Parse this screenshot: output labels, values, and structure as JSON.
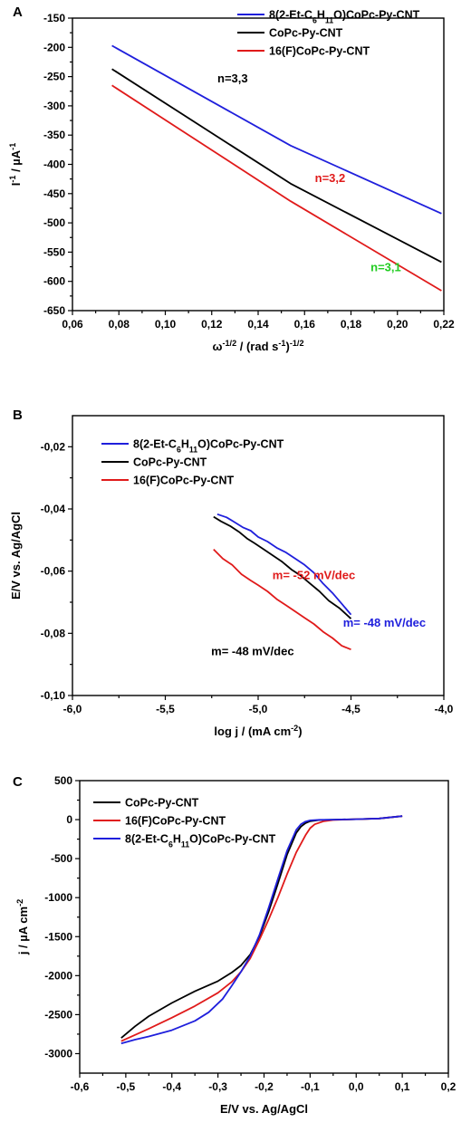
{
  "chart_data": [
    {
      "panel": "A",
      "type": "line",
      "xlabel": "ω^-1/2 / (rad s^-1)^-1/2",
      "ylabel": "I^-1 / µA^-1",
      "xlim": [
        0.06,
        0.22
      ],
      "ylim": [
        -650,
        -150
      ],
      "xticks": [
        "0,06",
        "0,08",
        "0,10",
        "0,12",
        "0,14",
        "0,16",
        "0,18",
        "0,20",
        "0,22"
      ],
      "yticks": [
        "-150",
        "-200",
        "-250",
        "-300",
        "-350",
        "-400",
        "-450",
        "-500",
        "-550",
        "-600",
        "-650"
      ],
      "legend_position": "top-right",
      "series": [
        {
          "name": "8(2-Et-C6H11O)CoPc-Py-CNT",
          "color": "#1f1fdc",
          "x": [
            0.077,
            0.154,
            0.219
          ],
          "y": [
            -197,
            -368,
            -484
          ]
        },
        {
          "name": "CoPc-Py-CNT",
          "color": "#000000",
          "x": [
            0.077,
            0.154,
            0.219
          ],
          "y": [
            -237,
            -433,
            -567
          ]
        },
        {
          "name": "16(F)CoPc-Py-CNT",
          "color": "#e01a1a",
          "x": [
            0.077,
            0.154,
            0.219
          ],
          "y": [
            -265,
            -463,
            -616
          ]
        }
      ],
      "annotations": [
        {
          "text": "n=3,3",
          "color": "#000000",
          "x": 0.129,
          "y": -260
        },
        {
          "text": "n=3,2",
          "color": "#e01a1a",
          "x": 0.171,
          "y": -430
        },
        {
          "text": "n=3,1",
          "color": "#22cc22",
          "x": 0.195,
          "y": -583
        }
      ]
    },
    {
      "panel": "B",
      "type": "line",
      "xlabel": "log j / (mA cm^-2)",
      "ylabel": "E/V vs. Ag/AgCl",
      "xlim": [
        -6.0,
        -4.0
      ],
      "ylim": [
        -0.1,
        -0.01
      ],
      "xticks": [
        "-6,0",
        "-5,5",
        "-5,0",
        "-4,5",
        "-4,0"
      ],
      "yticks": [
        "-0,02",
        "-0,04",
        "-0,06",
        "-0,08",
        "-0,10"
      ],
      "legend_position": "top-left",
      "series": [
        {
          "name": "8(2-Et-C6H11O)CoPc-Py-CNT",
          "color": "#1f1fdc",
          "x": [
            -5.22,
            -5.17,
            -5.12,
            -5.08,
            -5.04,
            -5.0,
            -4.95,
            -4.9,
            -4.85,
            -4.8,
            -4.75,
            -4.7,
            -4.65,
            -4.6,
            -4.55,
            -4.5
          ],
          "y": [
            -0.0417,
            -0.0427,
            -0.0445,
            -0.046,
            -0.047,
            -0.049,
            -0.0505,
            -0.0525,
            -0.054,
            -0.056,
            -0.058,
            -0.0605,
            -0.064,
            -0.067,
            -0.0705,
            -0.074
          ]
        },
        {
          "name": "CoPc-Py-CNT",
          "color": "#000000",
          "x": [
            -5.24,
            -5.2,
            -5.15,
            -5.1,
            -5.06,
            -5.02,
            -4.97,
            -4.92,
            -4.87,
            -4.82,
            -4.77,
            -4.72,
            -4.67,
            -4.62,
            -4.56,
            -4.5
          ],
          "y": [
            -0.0425,
            -0.044,
            -0.0455,
            -0.0475,
            -0.0495,
            -0.051,
            -0.053,
            -0.055,
            -0.057,
            -0.0595,
            -0.0615,
            -0.064,
            -0.0665,
            -0.0695,
            -0.072,
            -0.0753
          ]
        },
        {
          "name": "16(F)CoPc-Py-CNT",
          "color": "#e01a1a",
          "x": [
            -5.24,
            -5.19,
            -5.14,
            -5.09,
            -5.04,
            -5.0,
            -4.95,
            -4.9,
            -4.85,
            -4.8,
            -4.75,
            -4.7,
            -4.65,
            -4.6,
            -4.55,
            -4.5
          ],
          "y": [
            -0.053,
            -0.056,
            -0.058,
            -0.061,
            -0.063,
            -0.0645,
            -0.0665,
            -0.069,
            -0.071,
            -0.073,
            -0.075,
            -0.077,
            -0.0795,
            -0.0815,
            -0.084,
            -0.0852
          ]
        }
      ],
      "annotations": [
        {
          "text": "m= -52 mV/dec",
          "color": "#e01a1a",
          "x": -4.7,
          "y": -0.0625
        },
        {
          "text": "m= -48 mV/dec",
          "color": "#1f1fdc",
          "x": -4.32,
          "y": -0.0778
        },
        {
          "text": "m= -48 mV/dec",
          "color": "#000000",
          "x": -5.03,
          "y": -0.087
        }
      ]
    },
    {
      "panel": "C",
      "type": "line",
      "xlabel": "E/V vs. Ag/AgCl",
      "ylabel": "j / µA cm^-2",
      "xlim": [
        -0.6,
        0.2
      ],
      "ylim": [
        -3250,
        500
      ],
      "xticks": [
        "-0,6",
        "-0,5",
        "-0,4",
        "-0,3",
        "-0,2",
        "-0,1",
        "0,0",
        "0,1",
        "0,2"
      ],
      "yticks": [
        "500",
        "0",
        "-500",
        "-1000",
        "-1500",
        "-2000",
        "-2500",
        "-3000"
      ],
      "legend_position": "top-left",
      "series": [
        {
          "name": "CoPc-Py-CNT",
          "color": "#000000",
          "x": [
            -0.51,
            -0.48,
            -0.45,
            -0.4,
            -0.35,
            -0.3,
            -0.27,
            -0.25,
            -0.23,
            -0.21,
            -0.19,
            -0.17,
            -0.15,
            -0.13,
            -0.12,
            -0.11,
            -0.1,
            -0.08,
            -0.05,
            0.0,
            0.05,
            0.1
          ],
          "y": [
            -2800,
            -2650,
            -2520,
            -2350,
            -2200,
            -2070,
            -1960,
            -1870,
            -1730,
            -1500,
            -1180,
            -820,
            -450,
            -170,
            -90,
            -45,
            -20,
            -5,
            0,
            5,
            15,
            45
          ]
        },
        {
          "name": "16(F)CoPc-Py-CNT",
          "color": "#e01a1a",
          "x": [
            -0.51,
            -0.48,
            -0.45,
            -0.4,
            -0.35,
            -0.3,
            -0.27,
            -0.25,
            -0.23,
            -0.21,
            -0.19,
            -0.17,
            -0.15,
            -0.13,
            -0.11,
            -0.1,
            -0.09,
            -0.07,
            -0.05,
            0.0,
            0.05,
            0.1
          ],
          "y": [
            -2840,
            -2760,
            -2680,
            -2540,
            -2390,
            -2220,
            -2080,
            -1950,
            -1780,
            -1540,
            -1280,
            -1000,
            -700,
            -420,
            -200,
            -110,
            -60,
            -20,
            -5,
            5,
            15,
            45
          ]
        },
        {
          "name": "8(2-Et-C6H11O)CoPc-Py-CNT",
          "color": "#1f1fdc",
          "x": [
            -0.51,
            -0.48,
            -0.45,
            -0.4,
            -0.35,
            -0.32,
            -0.29,
            -0.27,
            -0.25,
            -0.23,
            -0.21,
            -0.19,
            -0.17,
            -0.15,
            -0.13,
            -0.12,
            -0.11,
            -0.1,
            -0.08,
            -0.05,
            0.0,
            0.05,
            0.1
          ],
          "y": [
            -2870,
            -2820,
            -2780,
            -2700,
            -2580,
            -2470,
            -2300,
            -2130,
            -1950,
            -1750,
            -1480,
            -1130,
            -760,
            -400,
            -130,
            -60,
            -25,
            -10,
            -3,
            0,
            5,
            15,
            45
          ]
        }
      ]
    }
  ]
}
